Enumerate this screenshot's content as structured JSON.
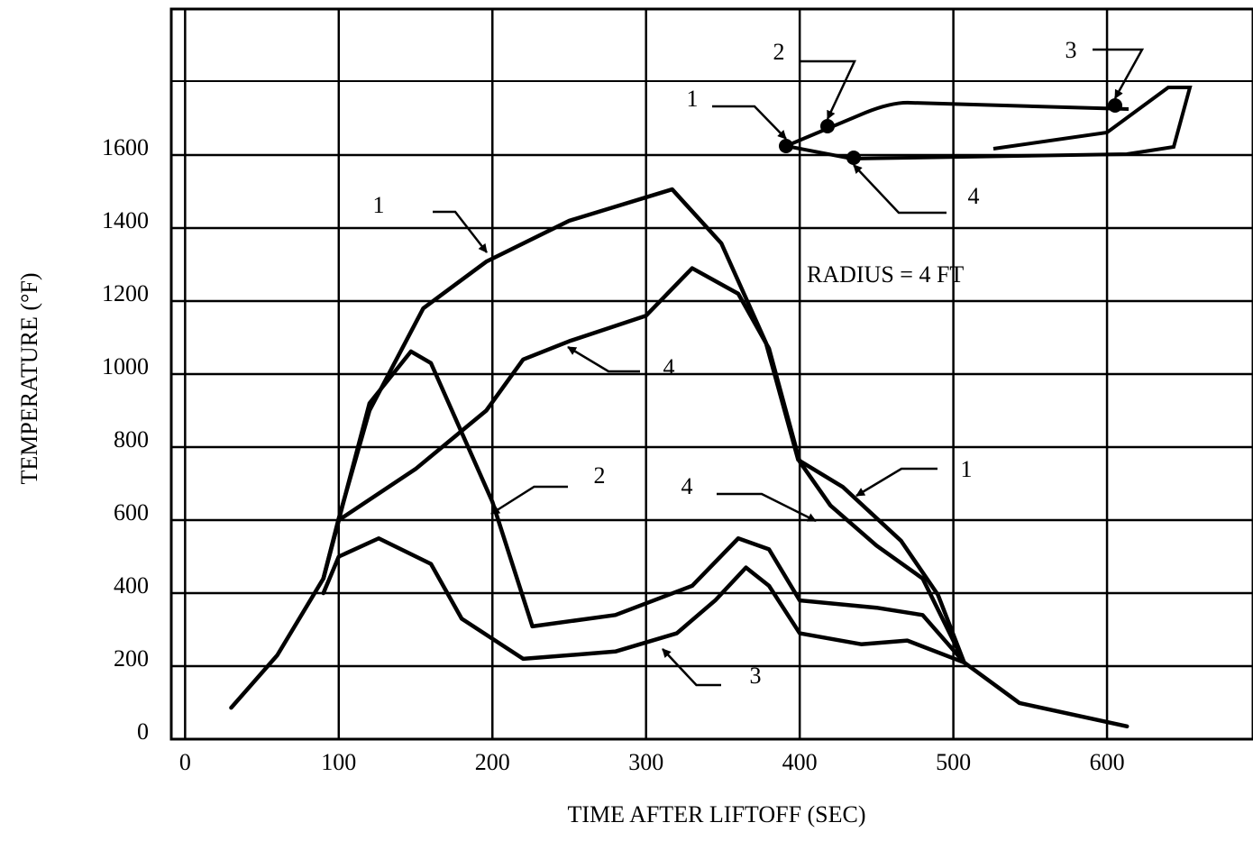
{
  "chart_data": {
    "type": "line",
    "x_label": "TIME AFTER LIFTOFF (SEC)",
    "y_label": "TEMPERATURE (°F)",
    "annotation": "RADIUS = 4 FT",
    "inset_labels": [
      "1",
      "2",
      "3",
      "4"
    ],
    "xlim": [
      -9,
      695
    ],
    "ylim": [
      0,
      2000
    ],
    "xticks": [
      0,
      100,
      200,
      300,
      400,
      500,
      600
    ],
    "yticks": [
      0,
      200,
      400,
      600,
      800,
      1000,
      1200,
      1400,
      1600
    ],
    "grid": true,
    "series": [
      {
        "name": "1",
        "color": "#000000",
        "x": [
          30,
          60,
          90,
          100,
          120,
          155,
          196,
          250,
          317,
          349,
          378,
          399,
          428,
          466,
          490,
          507,
          543,
          613
        ],
        "values": [
          86,
          230,
          440,
          605,
          900,
          1180,
          1308,
          1420,
          1506,
          1358,
          1086,
          765,
          691,
          543,
          395,
          210,
          99,
          35
        ]
      },
      {
        "name": "2",
        "color": "#000000",
        "x": [
          90,
          100,
          120,
          147,
          160,
          200,
          226,
          280,
          330,
          360,
          380,
          400,
          450,
          480,
          507
        ],
        "values": [
          440,
          600,
          920,
          1062,
          1030,
          650,
          309,
          340,
          420,
          550,
          520,
          380,
          360,
          340,
          210
        ]
      },
      {
        "name": "3",
        "color": "#000000",
        "x": [
          90,
          100,
          126,
          160,
          180,
          220,
          280,
          320,
          345,
          365,
          380,
          400,
          440,
          470,
          507
        ],
        "values": [
          400,
          500,
          550,
          480,
          330,
          220,
          240,
          290,
          380,
          470,
          420,
          290,
          260,
          270,
          210
        ]
      },
      {
        "name": "4",
        "color": "#000000",
        "x": [
          90,
          100,
          150,
          196,
          220,
          250,
          300,
          330,
          360,
          380,
          400,
          420,
          450,
          480,
          507
        ],
        "values": [
          440,
          600,
          740,
          900,
          1040,
          1090,
          1160,
          1290,
          1220,
          1070,
          760,
          640,
          530,
          440,
          210
        ]
      }
    ]
  }
}
